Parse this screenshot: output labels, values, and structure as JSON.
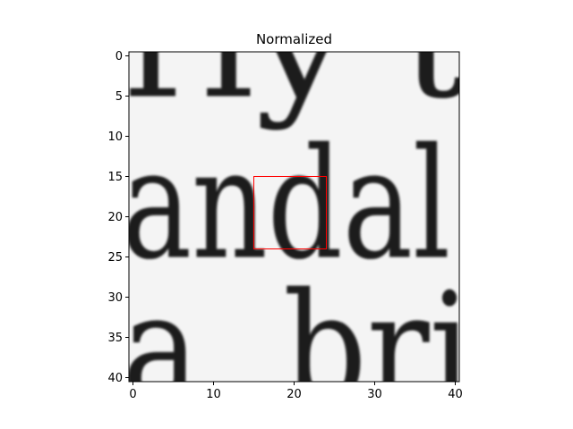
{
  "chart_data": {
    "type": "heatmap",
    "title": "Normalized",
    "xlabel": "",
    "ylabel": "",
    "colormap": "gray",
    "image_shape": [
      41,
      41
    ],
    "xlim": [
      -0.5,
      40.5
    ],
    "ylim": [
      40.5,
      -0.5
    ],
    "x_ticks": [
      0,
      10,
      20,
      30,
      40
    ],
    "y_ticks": [
      0,
      5,
      10,
      15,
      20,
      25,
      30,
      35,
      40
    ],
    "rows": [
      {
        "y": 0,
        "text": "rly  t",
        "x_start": -1.2,
        "x_end": 41.5
      },
      {
        "y": 20,
        "text": "andal",
        "x_start": -1.4,
        "x_end": 39.4
      },
      {
        "y": 38,
        "text": "a,  bri",
        "x_start": -1.4,
        "x_end": 42.0
      }
    ],
    "highlight_box": {
      "x": [
        15,
        24
      ],
      "y": [
        15,
        24
      ],
      "color": "#ff0000"
    },
    "colors": {
      "ink": "#1a1a1a",
      "paper": "#f4f4f4",
      "box": "#ff0000"
    }
  }
}
